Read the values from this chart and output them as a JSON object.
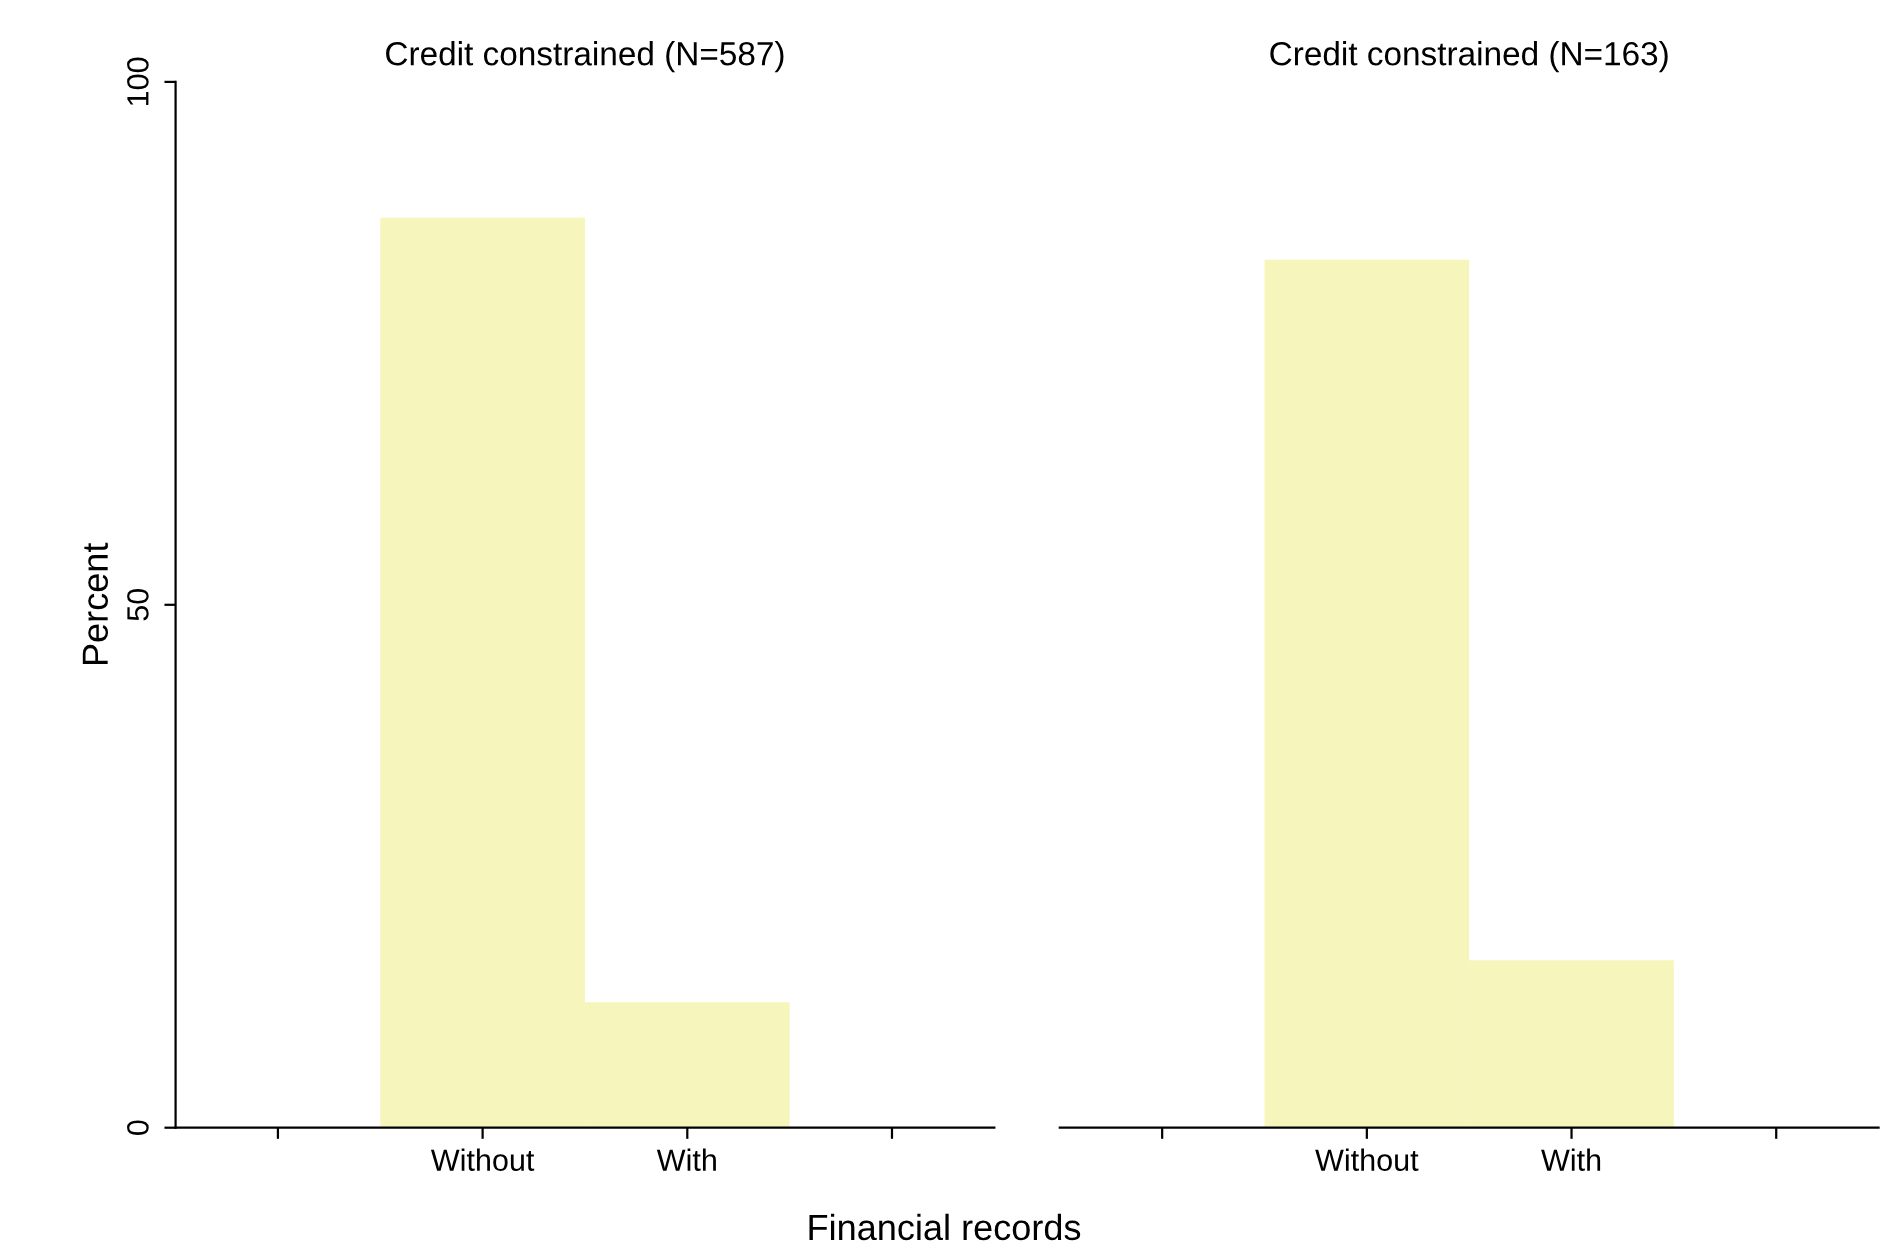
{
  "chart_data": [
    {
      "type": "bar",
      "title": "Credit constrained (N=587)",
      "categories": [
        "Without",
        "With"
      ],
      "values": [
        87,
        12
      ],
      "color": "#f6f6bc",
      "ylim": [
        0,
        100
      ],
      "yticks": [
        0,
        50,
        100
      ],
      "ylabel": "Percent",
      "xlabel": "Financial records",
      "grid": false
    },
    {
      "type": "bar",
      "title": "Credit constrained (N=163)",
      "categories": [
        "Without",
        "With"
      ],
      "values": [
        83,
        16
      ],
      "color": "#f6f6bc",
      "ylim": [
        0,
        100
      ],
      "yticks": [
        0,
        50,
        100
      ],
      "tick_labels": "x",
      "grid": false
    }
  ]
}
